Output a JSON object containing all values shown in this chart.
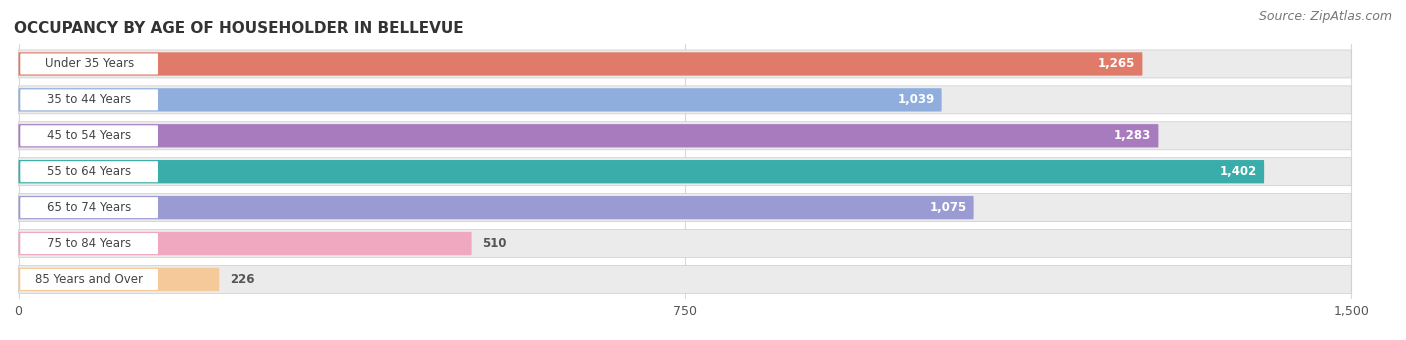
{
  "title": "OCCUPANCY BY AGE OF HOUSEHOLDER IN BELLEVUE",
  "source": "Source: ZipAtlas.com",
  "categories": [
    "Under 35 Years",
    "35 to 44 Years",
    "45 to 54 Years",
    "55 to 64 Years",
    "65 to 74 Years",
    "75 to 84 Years",
    "85 Years and Over"
  ],
  "values": [
    1265,
    1039,
    1283,
    1402,
    1075,
    510,
    226
  ],
  "bar_colors": [
    "#E07B6A",
    "#8FAEDD",
    "#A87BBF",
    "#3AADAA",
    "#9B9BD4",
    "#F0A8C0",
    "#F5C99A"
  ],
  "bar_bg_color": "#EBEBEB",
  "label_pill_color": "#FFFFFF",
  "xlim": [
    0,
    1500
  ],
  "xticks": [
    0,
    750,
    1500
  ],
  "xticklabels": [
    "0",
    "750",
    "1,500"
  ],
  "title_fontsize": 11,
  "source_fontsize": 9,
  "label_fontsize": 8.5,
  "value_fontsize": 8.5,
  "background_color": "#FFFFFF",
  "grid_color": "#D8D8D8",
  "value_inside_threshold": 600
}
